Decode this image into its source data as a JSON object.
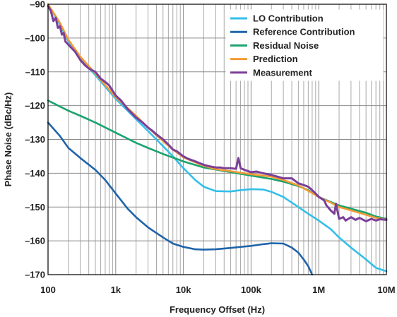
{
  "chart_data": {
    "type": "line",
    "xlabel": "Frequency Offset (Hz)",
    "ylabel": "Phase Noise (dBc/Hz)",
    "x_scale": "log",
    "xlim": [
      100,
      10000000
    ],
    "ylim": [
      -170,
      -90
    ],
    "x_ticks": [
      100,
      1000,
      10000,
      100000,
      1000000,
      10000000
    ],
    "x_tick_labels": [
      "100",
      "1k",
      "10k",
      "100k",
      "1M",
      "10M"
    ],
    "y_ticks": [
      -90,
      -100,
      -110,
      -120,
      -130,
      -140,
      -150,
      -160,
      -170
    ],
    "y_tick_labels": [
      "–90",
      "–100",
      "–110",
      "–120",
      "–130",
      "–140",
      "–150",
      "–160",
      "–170"
    ],
    "grid": true,
    "legend_position": "top-right",
    "series": [
      {
        "name": "LO Contribution",
        "color": "#33BFEA",
        "points": [
          [
            100,
            -90
          ],
          [
            150,
            -96
          ],
          [
            200,
            -101
          ],
          [
            300,
            -106
          ],
          [
            500,
            -111
          ],
          [
            1000,
            -118
          ],
          [
            2000,
            -124
          ],
          [
            3000,
            -127.5
          ],
          [
            5000,
            -132
          ],
          [
            7000,
            -135
          ],
          [
            10000,
            -138.5
          ],
          [
            15000,
            -142
          ],
          [
            20000,
            -144
          ],
          [
            30000,
            -145.3
          ],
          [
            50000,
            -145.4
          ],
          [
            70000,
            -145
          ],
          [
            100000,
            -144.7
          ],
          [
            150000,
            -144.8
          ],
          [
            200000,
            -145.5
          ],
          [
            300000,
            -147
          ],
          [
            500000,
            -150
          ],
          [
            700000,
            -152
          ],
          [
            1000000,
            -154
          ],
          [
            1500000,
            -156.5
          ],
          [
            2000000,
            -159
          ],
          [
            3000000,
            -162
          ],
          [
            5000000,
            -165.5
          ],
          [
            7000000,
            -168
          ],
          [
            10000000,
            -169
          ]
        ]
      },
      {
        "name": "Reference Contribution",
        "color": "#1F64AA",
        "points": [
          [
            100,
            -125
          ],
          [
            150,
            -129
          ],
          [
            200,
            -132.5
          ],
          [
            300,
            -135.5
          ],
          [
            500,
            -139
          ],
          [
            700,
            -142
          ],
          [
            1000,
            -146
          ],
          [
            1500,
            -150.5
          ],
          [
            2000,
            -153
          ],
          [
            3000,
            -156
          ],
          [
            5000,
            -159
          ],
          [
            7000,
            -160.8
          ],
          [
            10000,
            -161.8
          ],
          [
            15000,
            -162.5
          ],
          [
            20000,
            -162.6
          ],
          [
            30000,
            -162.5
          ],
          [
            50000,
            -162.1
          ],
          [
            70000,
            -161.8
          ],
          [
            100000,
            -161.5
          ],
          [
            150000,
            -161
          ],
          [
            200000,
            -160.7
          ],
          [
            300000,
            -160.8
          ],
          [
            400000,
            -162
          ],
          [
            500000,
            -163.5
          ],
          [
            600000,
            -165.5
          ],
          [
            700000,
            -167.5
          ],
          [
            800000,
            -170
          ]
        ]
      },
      {
        "name": "Residual Noise",
        "color": "#1BA36E",
        "points": [
          [
            100,
            -118.5
          ],
          [
            200,
            -121.5
          ],
          [
            300,
            -123
          ],
          [
            500,
            -125
          ],
          [
            1000,
            -128
          ],
          [
            2000,
            -131
          ],
          [
            3000,
            -132.5
          ],
          [
            5000,
            -134.3
          ],
          [
            10000,
            -136.5
          ],
          [
            20000,
            -138.3
          ],
          [
            50000,
            -139.7
          ],
          [
            100000,
            -140.7
          ],
          [
            200000,
            -141.7
          ],
          [
            300000,
            -142.5
          ],
          [
            500000,
            -143.8
          ],
          [
            700000,
            -145
          ],
          [
            1000000,
            -147
          ],
          [
            1500000,
            -148.5
          ],
          [
            2000000,
            -149.5
          ],
          [
            3000000,
            -150.5
          ],
          [
            5000000,
            -151.7
          ],
          [
            7000000,
            -152.8
          ],
          [
            10000000,
            -153.5
          ]
        ]
      },
      {
        "name": "Prediction",
        "color": "#F39A35",
        "points": [
          [
            100,
            -90
          ],
          [
            150,
            -95.5
          ],
          [
            200,
            -100.5
          ],
          [
            300,
            -105.5
          ],
          [
            500,
            -110.5
          ],
          [
            1000,
            -117.5
          ],
          [
            2000,
            -123
          ],
          [
            3000,
            -126.5
          ],
          [
            5000,
            -130.5
          ],
          [
            7000,
            -133
          ],
          [
            10000,
            -135.3
          ],
          [
            15000,
            -136.8
          ],
          [
            20000,
            -137.8
          ],
          [
            30000,
            -138.8
          ],
          [
            50000,
            -139.4
          ],
          [
            100000,
            -140.3
          ],
          [
            200000,
            -141
          ],
          [
            300000,
            -142
          ],
          [
            500000,
            -143.6
          ],
          [
            700000,
            -145.2
          ],
          [
            1000000,
            -147
          ],
          [
            1500000,
            -148.7
          ],
          [
            2000000,
            -150
          ],
          [
            3000000,
            -151
          ],
          [
            5000000,
            -152.3
          ],
          [
            7000000,
            -153.2
          ],
          [
            10000000,
            -153.7
          ]
        ]
      },
      {
        "name": "Measurement",
        "color": "#7B3F98",
        "points": [
          [
            100,
            -90.5
          ],
          [
            110,
            -92
          ],
          [
            120,
            -95
          ],
          [
            130,
            -94
          ],
          [
            140,
            -97
          ],
          [
            150,
            -96.5
          ],
          [
            160,
            -99
          ],
          [
            170,
            -98.5
          ],
          [
            180,
            -101
          ],
          [
            200,
            -102
          ],
          [
            250,
            -104
          ],
          [
            300,
            -106.5
          ],
          [
            350,
            -108
          ],
          [
            400,
            -109
          ],
          [
            500,
            -110
          ],
          [
            600,
            -112
          ],
          [
            700,
            -113
          ],
          [
            800,
            -114
          ],
          [
            1000,
            -117
          ],
          [
            1200,
            -118.5
          ],
          [
            1500,
            -121
          ],
          [
            2000,
            -123.5
          ],
          [
            2500,
            -125
          ],
          [
            3000,
            -126.5
          ],
          [
            3500,
            -127.5
          ],
          [
            4000,
            -128.5
          ],
          [
            5000,
            -130
          ],
          [
            6000,
            -131.5
          ],
          [
            7000,
            -133
          ],
          [
            8000,
            -133.5
          ],
          [
            10000,
            -135
          ],
          [
            12000,
            -135.8
          ],
          [
            15000,
            -136.5
          ],
          [
            20000,
            -137.5
          ],
          [
            25000,
            -138
          ],
          [
            30000,
            -138.3
          ],
          [
            35000,
            -138.3
          ],
          [
            40000,
            -138.5
          ],
          [
            50000,
            -138.5
          ],
          [
            60000,
            -138.7
          ],
          [
            65000,
            -135.5
          ],
          [
            70000,
            -138.5
          ],
          [
            80000,
            -139
          ],
          [
            100000,
            -139.7
          ],
          [
            120000,
            -139.5
          ],
          [
            150000,
            -140
          ],
          [
            200000,
            -140.5
          ],
          [
            300000,
            -141.5
          ],
          [
            400000,
            -141.5
          ],
          [
            500000,
            -143
          ],
          [
            600000,
            -143.5
          ],
          [
            700000,
            -144
          ],
          [
            800000,
            -145
          ],
          [
            900000,
            -146
          ],
          [
            1000000,
            -147
          ],
          [
            1200000,
            -148
          ],
          [
            1300000,
            -149.5
          ],
          [
            1500000,
            -151
          ],
          [
            1700000,
            -152
          ],
          [
            1800000,
            -149
          ],
          [
            2000000,
            -153.5
          ],
          [
            2300000,
            -153
          ],
          [
            2500000,
            -154
          ],
          [
            3000000,
            -153
          ],
          [
            3500000,
            -153.8
          ],
          [
            4000000,
            -153.2
          ],
          [
            5000000,
            -154.2
          ],
          [
            6000000,
            -153.5
          ],
          [
            7000000,
            -154
          ],
          [
            8000000,
            -153.6
          ],
          [
            10000000,
            -153.8
          ]
        ]
      }
    ]
  }
}
